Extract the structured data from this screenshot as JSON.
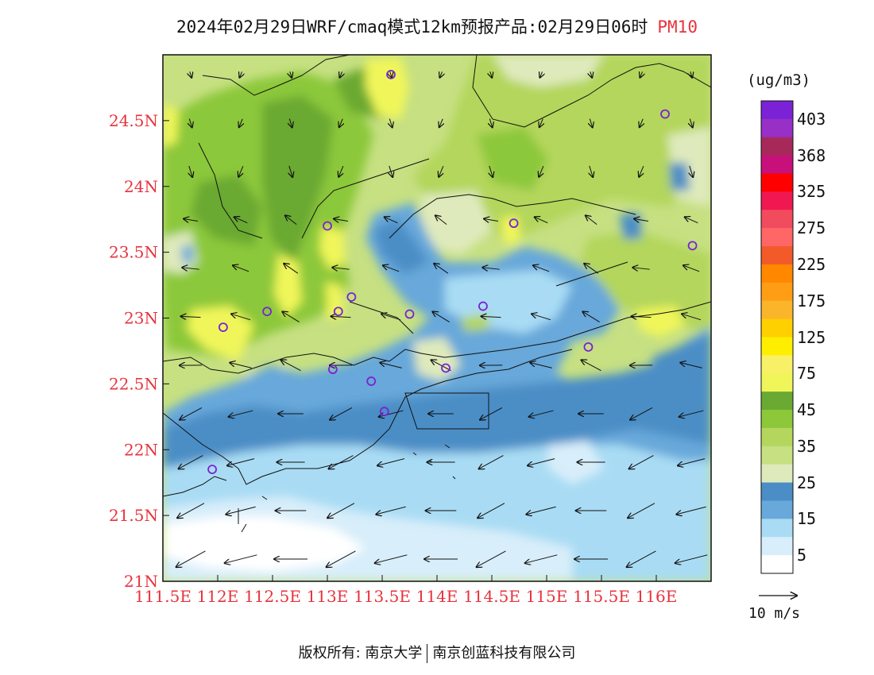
{
  "title": {
    "main": "2024年02月29日WRF/cmaq模式12km预报产品:02月29日06时",
    "highlight": "PM10",
    "highlight_color": "#e8323c"
  },
  "map_data": {
    "type": "pollution-forecast-map",
    "variable": "PM10",
    "unit": "(ug/m3)",
    "lon_range": [
      111.5,
      116.5
    ],
    "lat_range": [
      21.0,
      25.0
    ],
    "x_ticks": [
      "111.5E",
      "112E",
      "112.5E",
      "113E",
      "113.5E",
      "114E",
      "114.5E",
      "115E",
      "115.5E",
      "116E"
    ],
    "y_ticks": [
      "21N",
      "21.5N",
      "22N",
      "22.5N",
      "23N",
      "23.5N",
      "24N",
      "24.5N"
    ],
    "tick_color": "#e8323c",
    "colorbar": {
      "labels": [
        "403",
        "368",
        "325",
        "275",
        "225",
        "175",
        "125",
        "75",
        "45",
        "35",
        "25",
        "15",
        "5"
      ],
      "colors": [
        "#7b22d6",
        "#9830c8",
        "#a7295a",
        "#c8107a",
        "#ff0000",
        "#f01850",
        "#f04c5e",
        "#ff6666",
        "#f25a2a",
        "#ff8800",
        "#ff9e14",
        "#fbb52a",
        "#ffd000",
        "#ffee00",
        "#f8f066",
        "#f0f65a",
        "#6aa932",
        "#8cc83a",
        "#b4d65c",
        "#c6e082",
        "#dfeabc",
        "#4b8ec6",
        "#68a8da",
        "#a9dcf4",
        "#d8eefa",
        "#ffffff"
      ]
    },
    "wind_reference": "10 m/s",
    "stations": [
      {
        "lon": 113.58,
        "lat": 24.85
      },
      {
        "lon": 116.08,
        "lat": 24.55
      },
      {
        "lon": 113.0,
        "lat": 23.7
      },
      {
        "lon": 114.7,
        "lat": 23.72
      },
      {
        "lon": 116.33,
        "lat": 23.55
      },
      {
        "lon": 113.22,
        "lat": 23.16
      },
      {
        "lon": 112.45,
        "lat": 23.05
      },
      {
        "lon": 113.1,
        "lat": 23.05
      },
      {
        "lon": 113.75,
        "lat": 23.03
      },
      {
        "lon": 114.42,
        "lat": 23.09
      },
      {
        "lon": 112.05,
        "lat": 22.93
      },
      {
        "lon": 115.38,
        "lat": 22.78
      },
      {
        "lon": 113.05,
        "lat": 22.61
      },
      {
        "lon": 114.08,
        "lat": 22.62
      },
      {
        "lon": 113.4,
        "lat": 22.52
      },
      {
        "lon": 113.52,
        "lat": 22.29
      },
      {
        "lon": 111.95,
        "lat": 21.85
      }
    ],
    "station_color": "#7b22d6"
  },
  "footer": {
    "copyright": "版权所有: 南京大学",
    "company": "南京创蓝科技有限公司"
  }
}
